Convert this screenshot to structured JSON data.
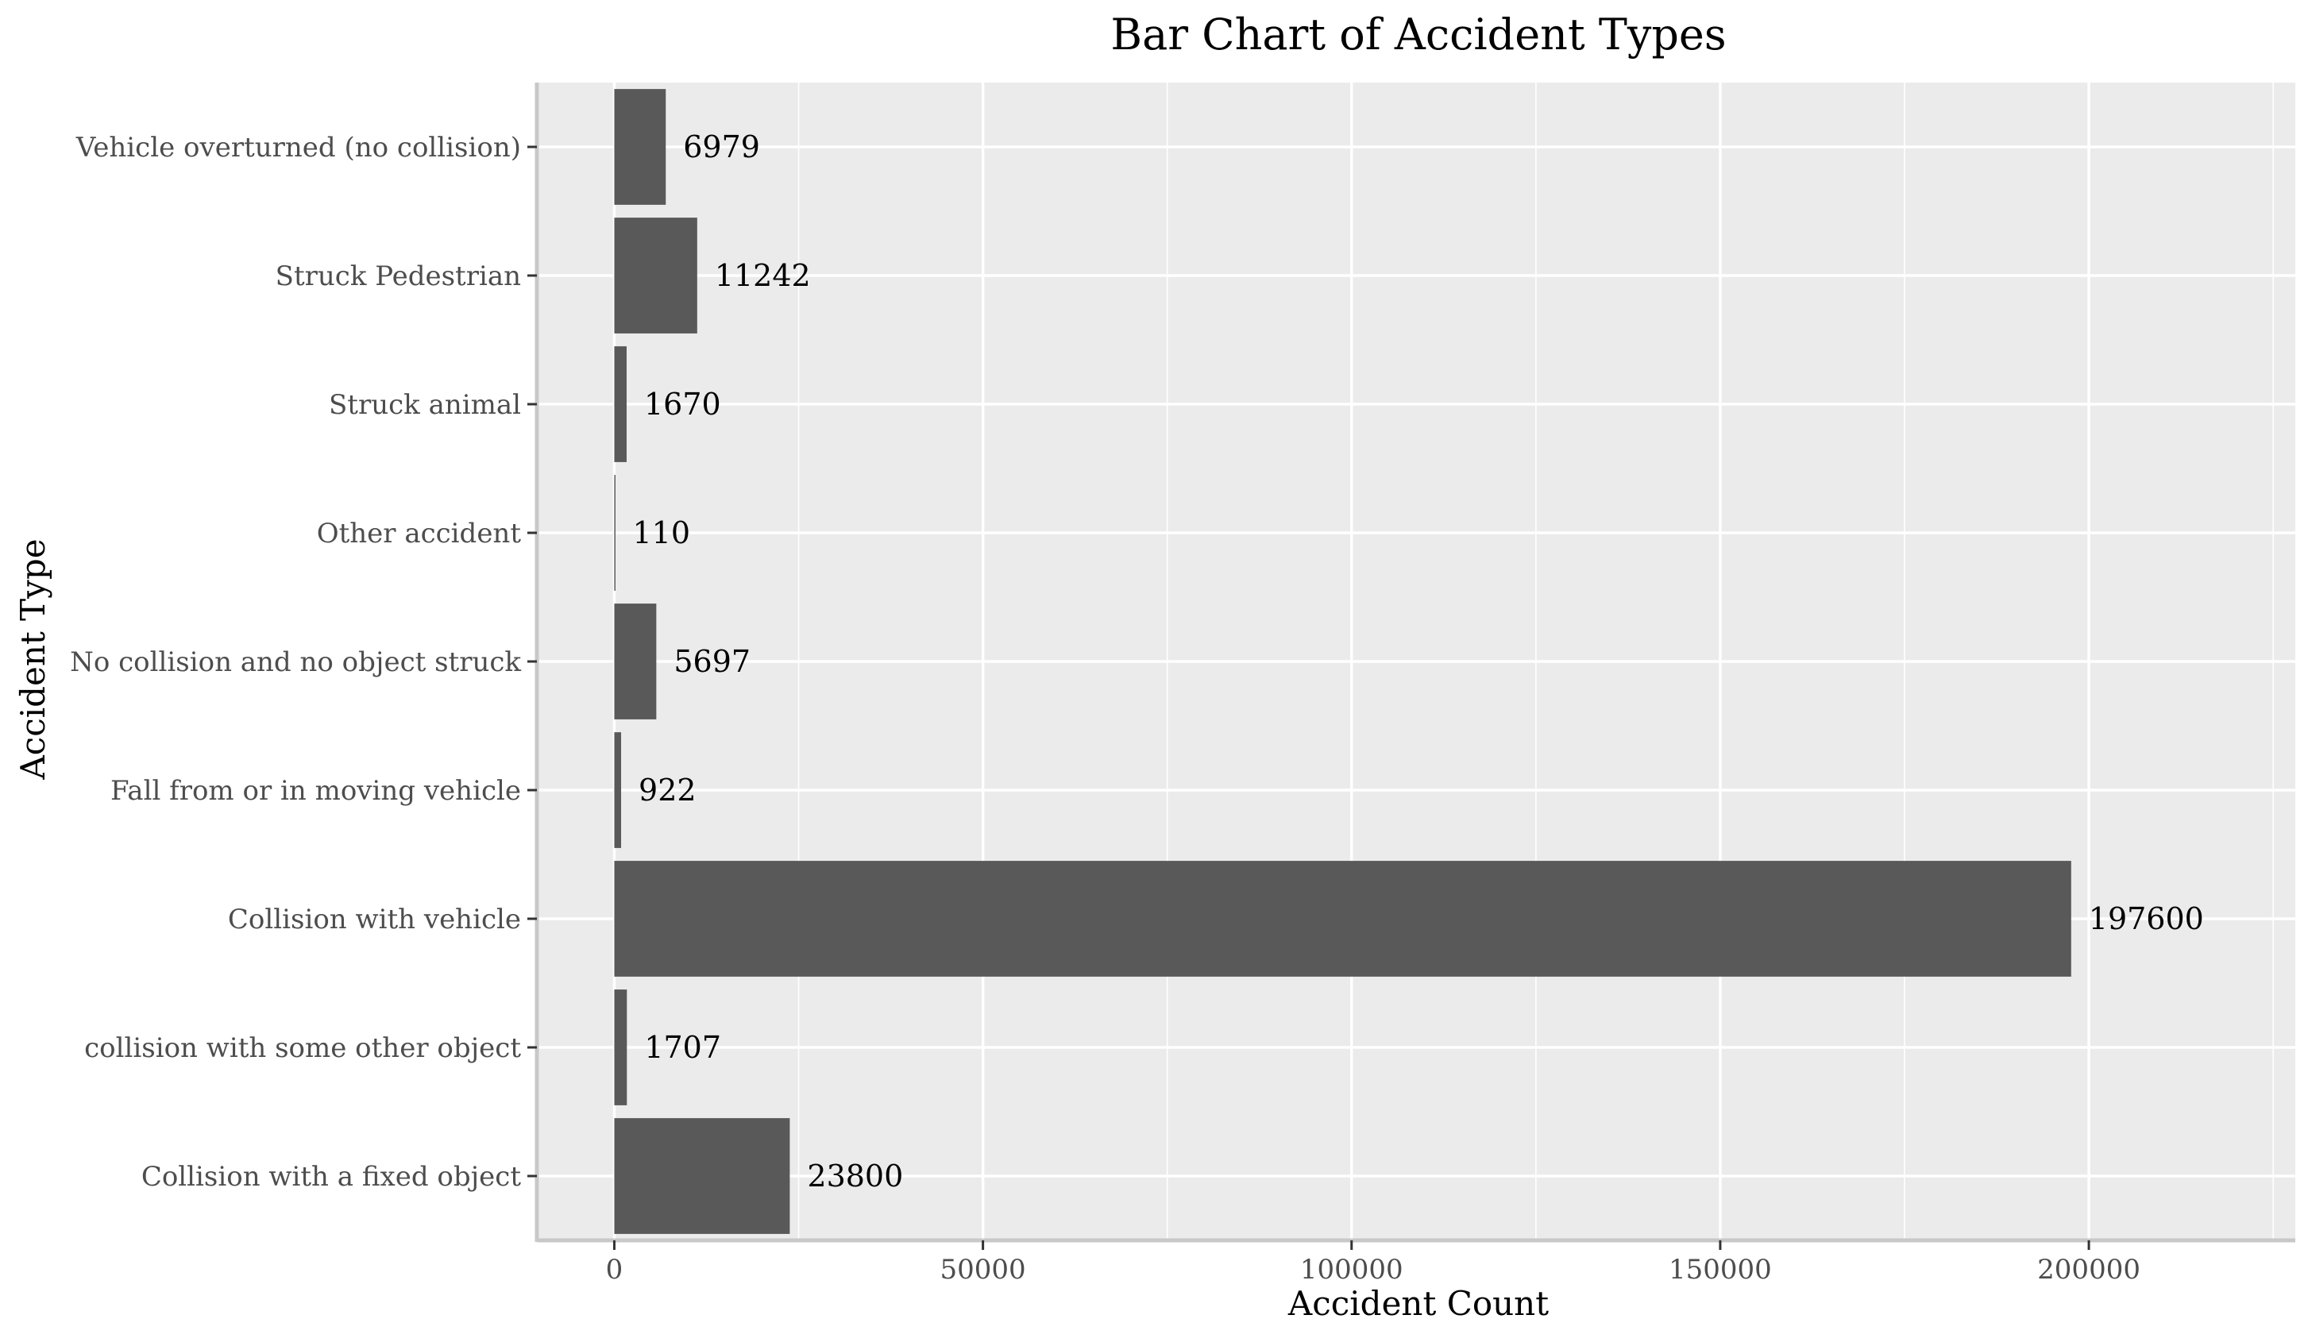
{
  "chart_data": {
    "type": "bar",
    "orientation": "horizontal",
    "title": "Bar Chart of Accident Types",
    "xlabel": "Accident Count",
    "ylabel": "Accident Type",
    "categories": [
      "Collision with a fixed object",
      "collision with some other object",
      "Collision with vehicle",
      "Fall from or in moving vehicle",
      "No collision and no object struck",
      "Other accident",
      "Struck animal",
      "Struck Pedestrian",
      "Vehicle overturned (no collision)"
    ],
    "values": [
      23800,
      1707,
      197600,
      922,
      5697,
      110,
      1670,
      11242,
      6979
    ],
    "data_labels": [
      "23800",
      "1707",
      "197600",
      "922",
      "5697",
      "110",
      "1670",
      "11242",
      "6979"
    ],
    "xlim": [
      -10500,
      228000
    ],
    "x_ticks": [
      0,
      50000,
      100000,
      150000,
      200000
    ],
    "x_tick_labels": [
      "0",
      "50000",
      "100000",
      "150000",
      "200000"
    ],
    "x_minor_ticks": [
      25000,
      75000,
      125000,
      175000,
      225000
    ],
    "grid": true,
    "legend": "none",
    "colors": {
      "bar": "#595959",
      "panel": "#ebebeb",
      "grid": "#ffffff",
      "axis_line": "#c8c8c8",
      "tick_text": "#4d4d4d",
      "text": "#000000"
    }
  }
}
